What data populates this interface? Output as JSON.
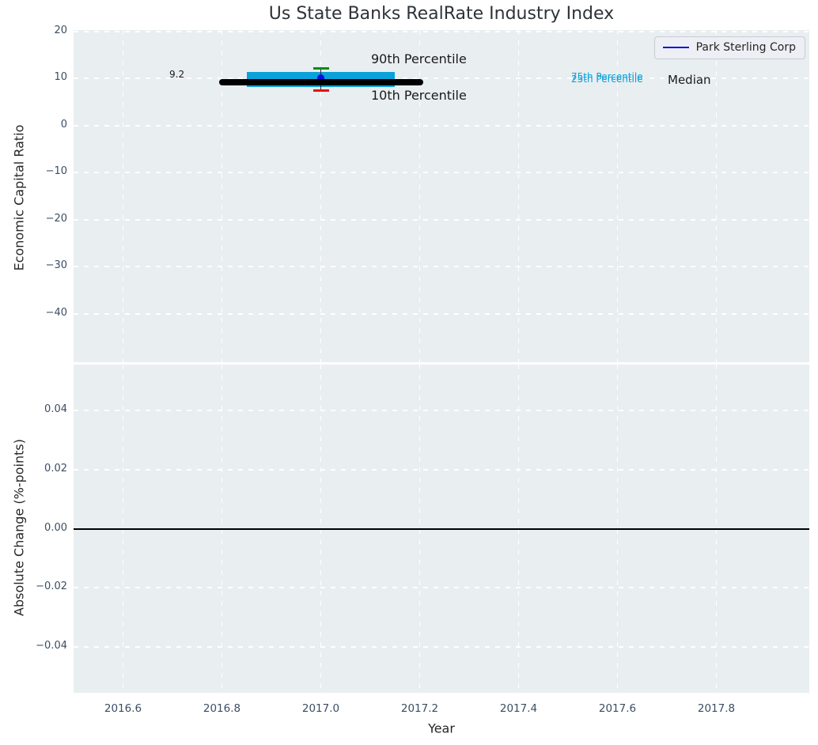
{
  "title": "Us State Banks RealRate Industry Index",
  "colors": {
    "axes_bg": "#e9eef1",
    "grid": "#ffffff",
    "band": "#0aa2d9",
    "p90_cap": "#0c8a18",
    "p10_cap": "#e81010",
    "company": "#0d0de6",
    "median_line": "#000000",
    "zero_line": "#000000",
    "tick_text": "#3b4d63",
    "label_text": "#262626"
  },
  "legend": {
    "label": "Park Sterling Corp"
  },
  "top_plot": {
    "ylabel": "Economic Capital Ratio",
    "ytick_labels": [
      "20",
      "10",
      "0",
      "−10",
      "−20",
      "−30",
      "−40"
    ],
    "ytick_values": [
      20,
      10,
      0,
      -10,
      -20,
      -30,
      -40
    ],
    "ylim": [
      -50.3,
      20.3
    ],
    "annotations": {
      "median_value": "9.2",
      "p90": "90th Percentile",
      "p10": "10th Percentile",
      "p75": "75th Percentile",
      "p25": "25th Percentile",
      "median": "Median"
    }
  },
  "bottom_plot": {
    "ylabel": "Absolute Change (%-points)",
    "ytick_labels": [
      "0.04",
      "0.02",
      "0.00",
      "−0.02",
      "−0.04"
    ],
    "ytick_values": [
      0.04,
      0.02,
      0,
      -0.02,
      -0.04
    ],
    "ylim": [
      -0.0555,
      0.0555
    ]
  },
  "x_axis": {
    "label": "Year",
    "tick_labels": [
      "2016.6",
      "2016.8",
      "2017.0",
      "2017.2",
      "2017.4",
      "2017.6",
      "2017.8"
    ],
    "tick_values": [
      2016.6,
      2016.8,
      2017.0,
      2017.2,
      2017.4,
      2017.6,
      2017.8
    ],
    "xlim": [
      2016.5,
      2017.988
    ]
  },
  "chart_data": [
    {
      "type": "line",
      "title": "Us State Banks RealRate Industry Index",
      "xlabel": "Year",
      "ylabel": "Economic Capital Ratio",
      "xlim": [
        2016.5,
        2017.988
      ],
      "ylim": [
        -50.3,
        20.3
      ],
      "grid": true,
      "legend_position": "upper right",
      "series": [
        {
          "name": "Median",
          "style": "thick_black_line",
          "x": [
            2016.8,
            2017.2
          ],
          "y": [
            9.2,
            9.2
          ],
          "value_label": "9.2"
        },
        {
          "name": "25th-75th Percentile band",
          "style": "band",
          "x": [
            2016.85,
            2017.15
          ],
          "y_low": 8.2,
          "y_high": 11.4,
          "color": "#0aa2d9"
        },
        {
          "name": "90th Percentile",
          "style": "cap",
          "x": 2017.0,
          "y": 12.2,
          "color": "#0c8a18"
        },
        {
          "name": "10th Percentile",
          "style": "cap",
          "x": 2017.0,
          "y": 7.5,
          "color": "#e81010"
        },
        {
          "name": "Park Sterling Corp",
          "style": "point",
          "x": [
            2017.0
          ],
          "y": [
            10.1
          ],
          "color": "#0d0de6"
        }
      ]
    },
    {
      "type": "line",
      "xlabel": "Year",
      "ylabel": "Absolute Change (%-points)",
      "xlim": [
        2016.5,
        2017.988
      ],
      "ylim": [
        -0.0555,
        0.0555
      ],
      "grid": true,
      "series": [
        {
          "name": "zero line",
          "style": "black_line",
          "x": [
            2016.5,
            2017.988
          ],
          "y": [
            0.0,
            0.0
          ]
        }
      ]
    }
  ]
}
